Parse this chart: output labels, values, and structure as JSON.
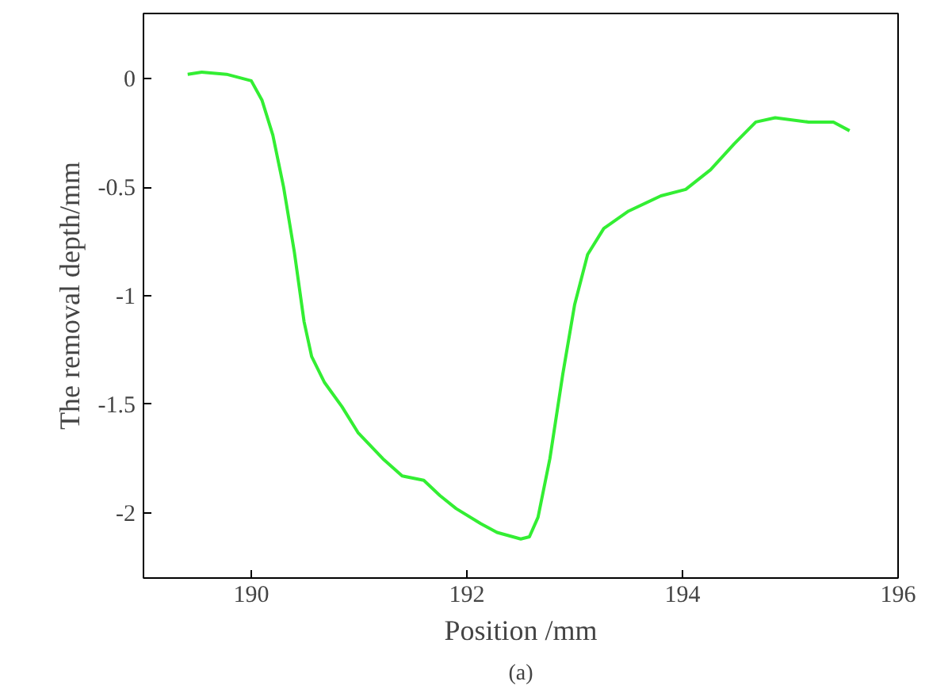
{
  "chart_data": {
    "type": "line",
    "xlabel": "Position /mm",
    "ylabel": "The removal depth/mm",
    "annotations": [
      "(a)"
    ],
    "xlim": [
      189,
      196
    ],
    "ylim": [
      -2.3,
      0.3
    ],
    "xticks": [
      190,
      192,
      194,
      196
    ],
    "yticks": [
      0,
      -0.5,
      -1,
      -1.5,
      -2
    ],
    "grid": false,
    "series": [
      {
        "color": "#33ee33",
        "x": [
          189.41,
          189.54,
          189.77,
          190.0,
          190.1,
          190.2,
          190.3,
          190.4,
          190.49,
          190.56,
          190.68,
          190.84,
          190.99,
          191.22,
          191.4,
          191.6,
          191.75,
          191.9,
          192.13,
          192.28,
          192.5,
          192.58,
          192.66,
          192.77,
          192.89,
          193.0,
          193.12,
          193.27,
          193.5,
          193.8,
          194.03,
          194.26,
          194.48,
          194.68,
          194.86,
          195.17,
          195.4,
          195.55
        ],
        "values": [
          0.02,
          0.03,
          0.02,
          -0.01,
          -0.1,
          -0.26,
          -0.5,
          -0.8,
          -1.12,
          -1.28,
          -1.4,
          -1.51,
          -1.63,
          -1.75,
          -1.83,
          -1.85,
          -1.92,
          -1.98,
          -2.05,
          -2.09,
          -2.12,
          -2.11,
          -2.02,
          -1.75,
          -1.36,
          -1.04,
          -0.81,
          -0.69,
          -0.61,
          -0.54,
          -0.51,
          -0.42,
          -0.3,
          -0.2,
          -0.18,
          -0.2,
          -0.2,
          -0.24
        ]
      }
    ]
  }
}
